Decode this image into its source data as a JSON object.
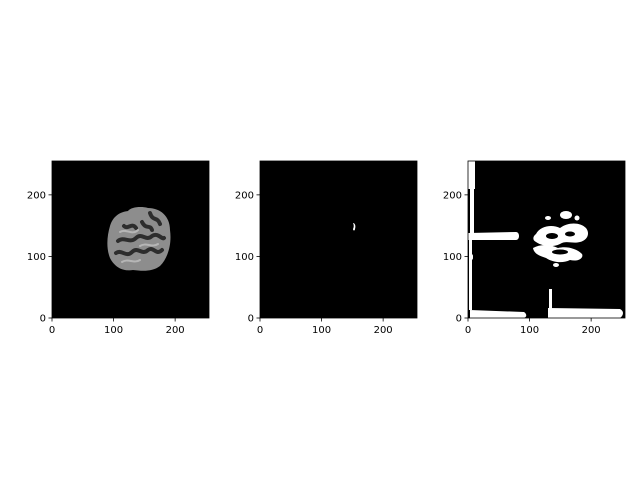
{
  "chart_data": [
    {
      "type": "heatmap",
      "panel": "brain-slice",
      "xlim": [
        0,
        255
      ],
      "ylim": [
        0,
        255
      ],
      "x_ticks": [
        0,
        100,
        200
      ],
      "y_ticks": [
        0,
        100,
        200
      ],
      "x_tick_labels": [
        "0",
        "100",
        "200"
      ],
      "y_tick_labels": [
        "0",
        "100",
        "200"
      ],
      "title": "",
      "xlabel": "",
      "ylabel": "",
      "background": "#000000"
    },
    {
      "type": "heatmap",
      "panel": "label-mask",
      "xlim": [
        0,
        255
      ],
      "ylim": [
        0,
        255
      ],
      "x_ticks": [
        0,
        100,
        200
      ],
      "y_ticks": [
        0,
        100,
        200
      ],
      "x_tick_labels": [
        "0",
        "100",
        "200"
      ],
      "y_tick_labels": [
        "0",
        "100",
        "200"
      ],
      "title": "",
      "xlabel": "",
      "ylabel": "",
      "background": "#000000"
    },
    {
      "type": "heatmap",
      "panel": "predicted-mask",
      "xlim": [
        0,
        255
      ],
      "ylim": [
        0,
        255
      ],
      "x_ticks": [
        0,
        100,
        200
      ],
      "y_ticks": [
        0,
        100,
        200
      ],
      "x_tick_labels": [
        "0",
        "100",
        "200"
      ],
      "y_tick_labels": [
        "0",
        "100",
        "200"
      ],
      "title": "",
      "xlabel": "",
      "ylabel": "",
      "background": "#000000"
    }
  ]
}
